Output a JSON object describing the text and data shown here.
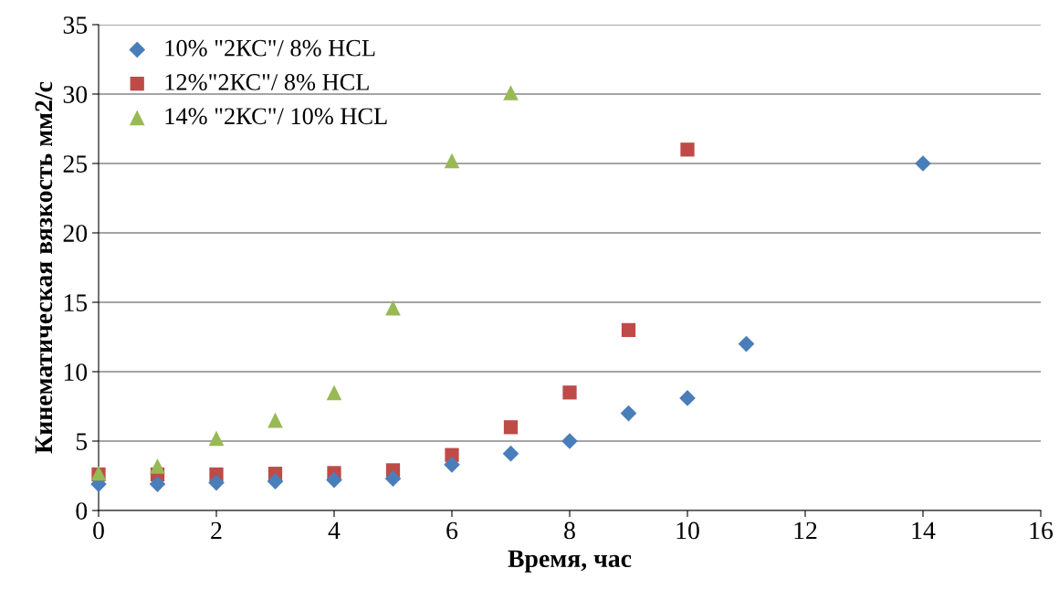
{
  "chart_data": {
    "type": "scatter",
    "xlabel": "Время, час",
    "ylabel": "Кинематическая вязкость мм2/с",
    "xlim": [
      0,
      16
    ],
    "xticks": [
      0,
      2,
      4,
      6,
      8,
      10,
      12,
      14,
      16
    ],
    "ylim": [
      0,
      35
    ],
    "yticks": [
      0,
      5,
      10,
      15,
      20,
      25,
      30,
      35
    ],
    "grid": "y",
    "legend": "top left",
    "series": [
      {
        "name": "10% \"2КС\"/ 8% HCL",
        "color": "#4a7ebb",
        "marker": "diamond",
        "x": [
          0,
          1,
          2,
          3,
          4,
          5,
          6,
          7,
          8,
          9,
          10,
          11,
          14
        ],
        "values": [
          1.9,
          1.9,
          2.0,
          2.1,
          2.2,
          2.3,
          3.3,
          4.1,
          5.0,
          7.0,
          8.1,
          12,
          25
        ]
      },
      {
        "name": "12%\"2КС\"/ 8% HCL",
        "color": "#be4b48",
        "marker": "square",
        "x": [
          0,
          1,
          2,
          3,
          4,
          5,
          6,
          7,
          8,
          9,
          10
        ],
        "values": [
          2.6,
          2.6,
          2.6,
          2.65,
          2.7,
          2.9,
          4.0,
          6.0,
          8.5,
          13,
          26
        ]
      },
      {
        "name": "14% \"2КС\"/ 10% HCL",
        "color": "#98b954",
        "marker": "triangle",
        "x": [
          0,
          1,
          2,
          3,
          4,
          5,
          6,
          7
        ],
        "values": [
          2.7,
          3.2,
          5.2,
          6.5,
          8.5,
          14.6,
          25.2,
          30.1
        ]
      }
    ]
  }
}
